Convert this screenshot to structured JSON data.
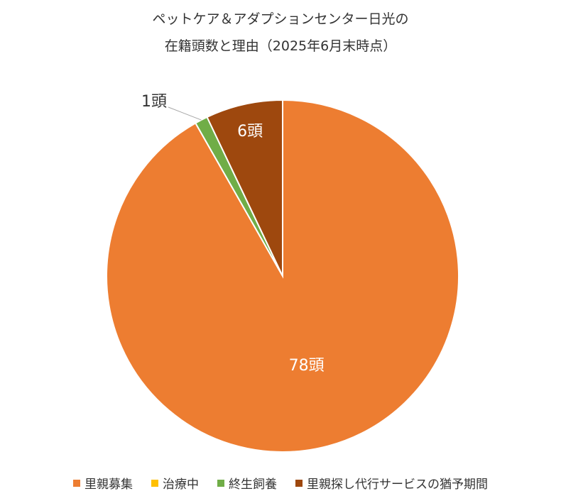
{
  "chart_data": {
    "type": "pie",
    "title_lines": [
      "ペットケア＆アダプションセンター日光の",
      "在籍頭数と理由（2025年6月末時点）"
    ],
    "series": [
      {
        "name": "里親募集",
        "value": 78,
        "label": "78頭",
        "color": "#ED7D31"
      },
      {
        "name": "治療中",
        "value": 0,
        "label": "",
        "color": "#FFC000"
      },
      {
        "name": "終生飼養",
        "value": 1,
        "label": "1頭",
        "color": "#70AD47"
      },
      {
        "name": "里親探し代行サービスの猶予期間",
        "value": 6,
        "label": "6頭",
        "color": "#9E480E"
      }
    ],
    "legend_position": "bottom"
  }
}
